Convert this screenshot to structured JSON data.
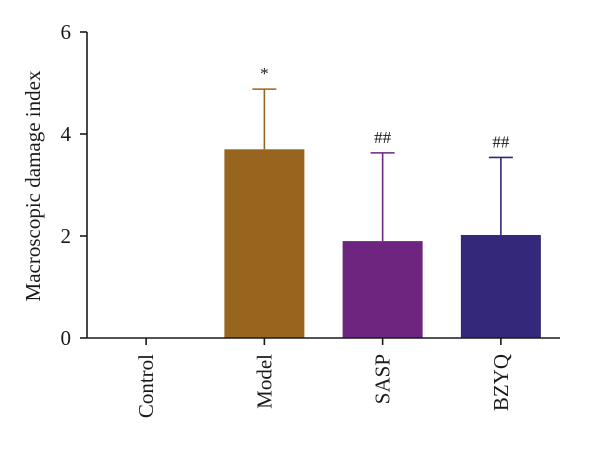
{
  "chart_data": {
    "type": "bar",
    "title": "",
    "xlabel": "",
    "ylabel": "Macroscopic damage index",
    "ylim": [
      0,
      6
    ],
    "yticks": [
      0,
      2,
      4,
      6
    ],
    "categories": [
      "Control",
      "Model",
      "SASP",
      "BZYQ"
    ],
    "values": [
      0,
      3.7,
      1.9,
      2.02
    ],
    "error_upper": [
      0,
      1.18,
      1.73,
      1.52
    ],
    "annotations": [
      "",
      "*",
      "##",
      "##"
    ],
    "colors": [
      "#ffffff",
      "#98651E",
      "#6E2580",
      "#33287A"
    ],
    "grid": false,
    "legend": "none"
  }
}
